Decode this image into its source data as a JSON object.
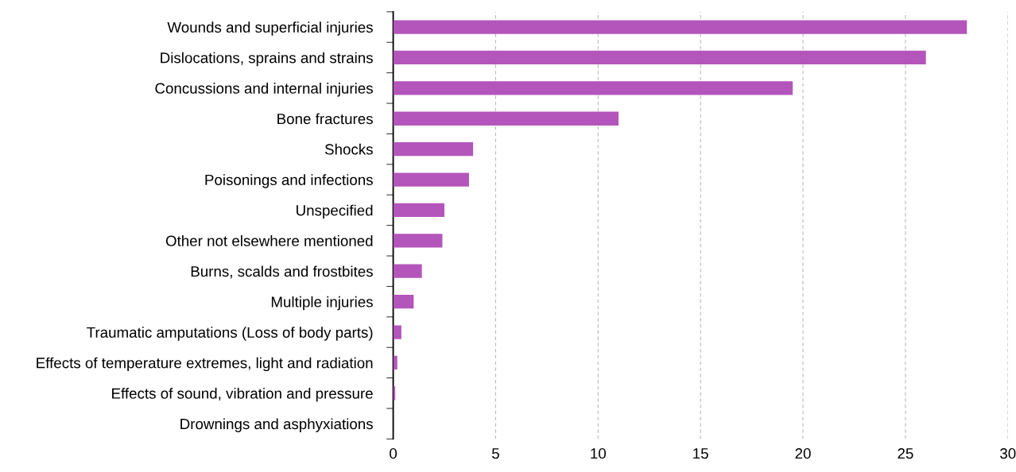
{
  "chart_data": {
    "type": "bar",
    "orientation": "horizontal",
    "categories": [
      "Wounds and superficial injuries",
      "Dislocations, sprains and strains",
      "Concussions and internal injuries",
      "Bone fractures",
      "Shocks",
      "Poisonings and infections",
      "Unspecified",
      "Other not elsewhere mentioned",
      "Burns, scalds and frostbites",
      "Multiple injuries",
      "Traumatic amputations (Loss of body parts)",
      "Effects of temperature extremes, light and radiation",
      "Effects of sound, vibration and pressure",
      "Drownings and asphyxiations"
    ],
    "values": [
      28,
      26,
      19.5,
      11,
      3.9,
      3.7,
      2.5,
      2.4,
      1.4,
      1.0,
      0.4,
      0.2,
      0.1,
      0
    ],
    "color": "#b455bb",
    "xlim": [
      0,
      30
    ],
    "xticks": [
      0,
      5,
      10,
      15,
      20,
      25,
      30
    ],
    "grid": "x"
  }
}
